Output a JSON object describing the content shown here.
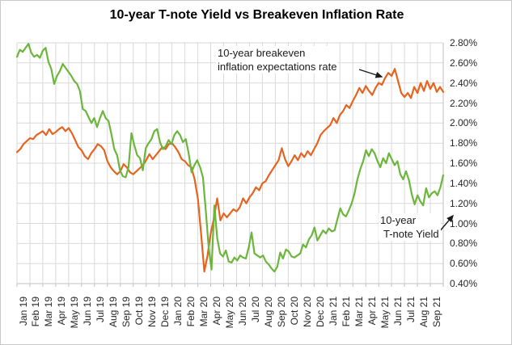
{
  "title": "10-year T-note Yield vs Breakeven Inflation Rate",
  "annotations": {
    "breakeven": {
      "line1": "10-year breakeven",
      "line2": "inflation expectations rate"
    },
    "tnote": {
      "line1": "10-year",
      "line2": "T-note Yield"
    }
  },
  "colors": {
    "background": "#ffffff",
    "grid": "#d9d9d9",
    "axis": "#bfbfbf",
    "text": "#262626",
    "breakeven_orange": "#e6641e",
    "tnote_green": "#6cb63c",
    "arrow": "#1a1a1a"
  },
  "chart_data": {
    "type": "line",
    "title": "10-year T-note Yield vs Breakeven Inflation Rate",
    "xlabel": "",
    "ylabel": "",
    "grid": true,
    "legend": "none",
    "ylim": [
      0.4,
      2.8
    ],
    "y_tick_step": 0.2,
    "y_tick_labels": [
      "2.80%",
      "2.60%",
      "2.40%",
      "2.20%",
      "2.00%",
      "1.80%",
      "1.60%",
      "1.40%",
      "1.20%",
      "1.00%",
      "0.80%",
      "0.60%",
      "0.40%"
    ],
    "x_categories": [
      "Jan 19",
      "Feb 19",
      "Mar 19",
      "Apr 19",
      "May 19",
      "Jun 19",
      "Jul 19",
      "Aug 19",
      "Sep 19",
      "Oct 19",
      "Nov 19",
      "Dec 19",
      "Jan 20",
      "Feb 20",
      "Mar 20",
      "Apr 20",
      "May 20",
      "Jun 20",
      "Jul 20",
      "Aug 20",
      "Sep 20",
      "Oct 20",
      "Nov 20",
      "Dec 20",
      "Jan 21",
      "Feb 21",
      "Mar 21",
      "Apr 21",
      "May 21",
      "Jun 21",
      "Jul 21",
      "Aug 21",
      "Sep 21"
    ],
    "series": [
      {
        "name": "10-year breakeven inflation expectations rate",
        "color": "#e6641e",
        "values": [
          1.71,
          1.74,
          1.79,
          1.82,
          1.85,
          1.84,
          1.88,
          1.9,
          1.92,
          1.88,
          1.94,
          1.89,
          1.91,
          1.94,
          1.96,
          1.92,
          1.95,
          1.9,
          1.83,
          1.76,
          1.73,
          1.67,
          1.64,
          1.7,
          1.74,
          1.79,
          1.77,
          1.73,
          1.62,
          1.56,
          1.52,
          1.49,
          1.52,
          1.59,
          1.56,
          1.51,
          1.49,
          1.52,
          1.55,
          1.58,
          1.63,
          1.69,
          1.64,
          1.68,
          1.72,
          1.76,
          1.74,
          1.79,
          1.8,
          1.76,
          1.71,
          1.64,
          1.62,
          1.58,
          1.56,
          1.44,
          1.25,
          0.9,
          0.52,
          0.68,
          0.9,
          1.05,
          1.25,
          1.03,
          1.1,
          1.06,
          1.1,
          1.14,
          1.12,
          1.16,
          1.25,
          1.2,
          1.26,
          1.3,
          1.36,
          1.33,
          1.4,
          1.42,
          1.48,
          1.53,
          1.58,
          1.63,
          1.75,
          1.64,
          1.57,
          1.62,
          1.68,
          1.63,
          1.7,
          1.66,
          1.72,
          1.68,
          1.74,
          1.8,
          1.88,
          1.92,
          1.95,
          1.98,
          2.05,
          2.0,
          2.08,
          2.12,
          2.18,
          2.15,
          2.22,
          2.28,
          2.35,
          2.3,
          2.37,
          2.32,
          2.28,
          2.35,
          2.4,
          2.38,
          2.45,
          2.5,
          2.47,
          2.54,
          2.42,
          2.3,
          2.26,
          2.3,
          2.25,
          2.36,
          2.3,
          2.4,
          2.32,
          2.42,
          2.34,
          2.4,
          2.31,
          2.36,
          2.31
        ]
      },
      {
        "name": "10-year T-note Yield",
        "color": "#6cb63c",
        "values": [
          2.66,
          2.73,
          2.71,
          2.75,
          2.79,
          2.7,
          2.66,
          2.68,
          2.65,
          2.72,
          2.75,
          2.61,
          2.54,
          2.39,
          2.47,
          2.52,
          2.59,
          2.55,
          2.51,
          2.47,
          2.42,
          2.39,
          2.32,
          2.14,
          2.12,
          2.06,
          2.0,
          2.05,
          1.96,
          2.05,
          2.12,
          2.05,
          2.02,
          1.89,
          1.74,
          1.68,
          1.53,
          1.47,
          1.46,
          1.56,
          1.9,
          1.78,
          1.68,
          1.65,
          1.53,
          1.75,
          1.8,
          1.84,
          1.92,
          1.94,
          1.81,
          1.74,
          1.77,
          1.83,
          1.79,
          1.88,
          1.92,
          1.88,
          1.81,
          1.84,
          1.7,
          1.51,
          1.58,
          1.63,
          1.56,
          1.46,
          1.13,
          0.76,
          0.54,
          1.18,
          0.85,
          0.7,
          0.67,
          0.73,
          0.62,
          0.61,
          0.66,
          0.63,
          0.68,
          0.66,
          0.65,
          0.76,
          0.91,
          0.7,
          0.68,
          0.66,
          0.68,
          0.62,
          0.59,
          0.55,
          0.52,
          0.57,
          0.71,
          0.65,
          0.74,
          0.72,
          0.67,
          0.66,
          0.68,
          0.7,
          0.79,
          0.76,
          0.84,
          0.88,
          0.96,
          0.83,
          0.88,
          0.93,
          0.9,
          0.95,
          0.92,
          0.93,
          1.04,
          1.15,
          1.09,
          1.07,
          1.13,
          1.2,
          1.3,
          1.44,
          1.54,
          1.62,
          1.73,
          1.67,
          1.74,
          1.7,
          1.62,
          1.56,
          1.65,
          1.6,
          1.7,
          1.64,
          1.58,
          1.62,
          1.49,
          1.44,
          1.52,
          1.43,
          1.29,
          1.19,
          1.28,
          1.22,
          1.18,
          1.35,
          1.26,
          1.3,
          1.32,
          1.28,
          1.36,
          1.48
        ]
      }
    ]
  }
}
